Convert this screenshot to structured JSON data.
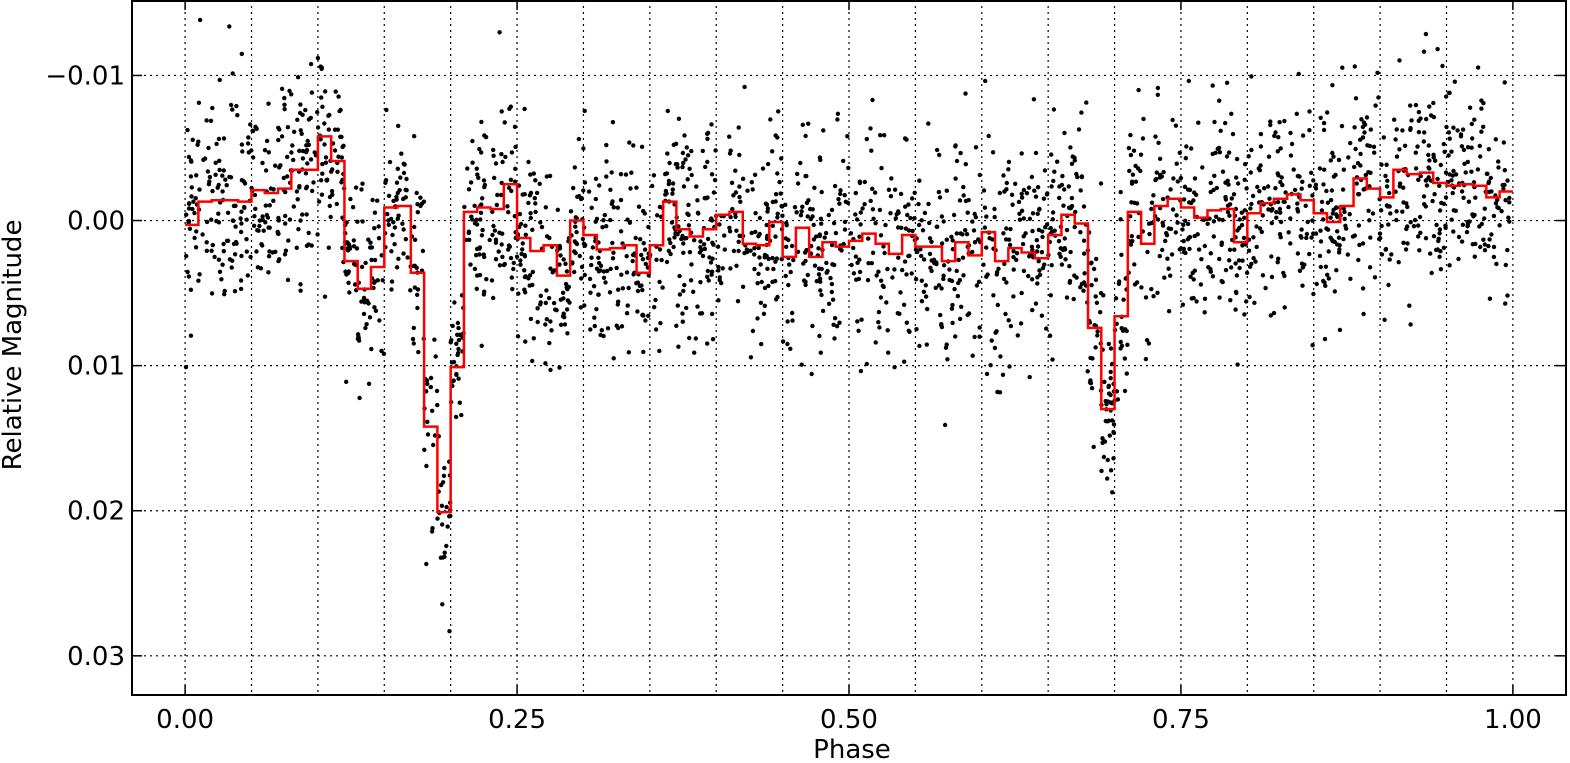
{
  "chart_data": {
    "type": "scatter",
    "title": "",
    "xlabel": "Phase",
    "ylabel": "Relative Magnitude",
    "xlim": [
      -0.04,
      1.04
    ],
    "ylim": [
      -0.0152,
      0.0327
    ],
    "y_inverted": true,
    "grid": true,
    "grid_style": "dotted",
    "x_ticks": [
      0.0,
      0.25,
      0.5,
      0.75,
      1.0
    ],
    "x_tick_labels": [
      "0.00",
      "0.25",
      "0.50",
      "0.75",
      "1.00"
    ],
    "x_minor_grid": [
      0.05,
      0.1,
      0.15,
      0.2,
      0.3,
      0.35,
      0.4,
      0.45,
      0.55,
      0.6,
      0.65,
      0.7,
      0.8,
      0.85,
      0.9,
      0.95
    ],
    "y_ticks": [
      -0.01,
      0.0,
      0.01,
      0.02,
      0.03
    ],
    "y_tick_labels": [
      "−0.01",
      "0.00",
      "0.01",
      "0.02",
      "0.03"
    ],
    "colors": {
      "points": "#000000",
      "binned": "#ff0000",
      "grid": "#000000"
    },
    "binned_series": {
      "x": [
        0.0,
        0.01,
        0.02,
        0.03,
        0.04,
        0.05,
        0.06,
        0.07,
        0.08,
        0.09,
        0.1,
        0.11,
        0.12,
        0.13,
        0.14,
        0.15,
        0.16,
        0.17,
        0.18,
        0.19,
        0.2,
        0.21,
        0.22,
        0.23,
        0.24,
        0.25,
        0.26,
        0.27,
        0.28,
        0.29,
        0.3,
        0.31,
        0.32,
        0.33,
        0.34,
        0.35,
        0.36,
        0.37,
        0.38,
        0.39,
        0.4,
        0.41,
        0.42,
        0.43,
        0.44,
        0.45,
        0.46,
        0.47,
        0.48,
        0.49,
        0.5,
        0.51,
        0.52,
        0.53,
        0.54,
        0.55,
        0.56,
        0.57,
        0.58,
        0.59,
        0.6,
        0.61,
        0.62,
        0.63,
        0.64,
        0.65,
        0.66,
        0.67,
        0.68,
        0.69,
        0.7,
        0.71,
        0.72,
        0.73,
        0.74,
        0.75,
        0.76,
        0.77,
        0.78,
        0.79,
        0.8,
        0.81,
        0.82,
        0.83,
        0.84,
        0.85,
        0.86,
        0.87,
        0.88,
        0.89,
        0.9,
        0.91,
        0.92,
        0.93,
        0.94,
        0.95,
        0.96,
        0.97,
        0.98,
        0.99
      ],
      "y": [
        0.0003,
        -0.0013,
        -0.0014,
        -0.0014,
        -0.0013,
        -0.0021,
        -0.0019,
        -0.0022,
        -0.0035,
        -0.0035,
        -0.0058,
        -0.0041,
        0.0028,
        0.0047,
        0.0032,
        -0.0009,
        -0.001,
        0.0036,
        0.0142,
        0.0201,
        0.0101,
        -0.0006,
        -0.0009,
        -0.0008,
        -0.0025,
        0.0012,
        0.0021,
        0.0017,
        0.0038,
        0.0,
        0.001,
        0.002,
        0.0019,
        0.0017,
        0.0036,
        0.0017,
        -0.0013,
        0.0006,
        0.0011,
        0.0006,
        -0.0004,
        -0.0006,
        0.0016,
        0.0017,
        0.0001,
        0.0025,
        0.0005,
        0.0025,
        0.0015,
        0.0018,
        0.0014,
        0.0009,
        0.0016,
        0.0023,
        0.001,
        0.0018,
        0.0018,
        0.0028,
        0.0015,
        0.0024,
        0.0008,
        0.0028,
        0.0019,
        0.0022,
        0.0026,
        0.001,
        -0.0004,
        0.0002,
        0.0074,
        0.013,
        0.0066,
        -0.0006,
        0.0016,
        -0.001,
        -0.0015,
        -0.0009,
        -0.0002,
        -0.0007,
        -0.0008,
        0.0015,
        -0.0005,
        -0.0012,
        -0.0015,
        -0.0018,
        -0.0014,
        -0.0005,
        0.0001,
        -0.001,
        -0.0029,
        -0.0022,
        -0.0016,
        -0.0035,
        -0.0032,
        -0.0033,
        -0.0026,
        -0.0024,
        -0.0025,
        -0.0024,
        -0.0016,
        -0.002
      ]
    }
  }
}
